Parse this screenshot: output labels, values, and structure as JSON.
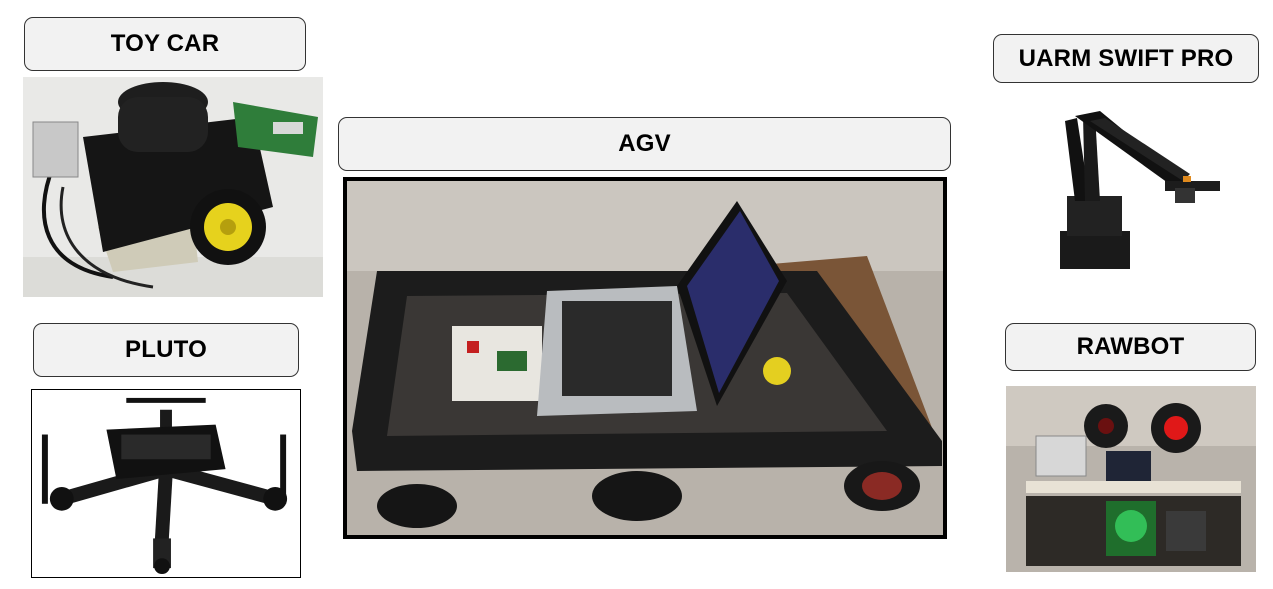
{
  "labels": {
    "toy_car": "TOY CAR",
    "agv": "AGV",
    "uarm": "UARM SWIFT PRO",
    "pluto": "PLUTO",
    "rawbot": "RAWBOT"
  },
  "colors": {
    "label_fill": "#f2f2f2",
    "label_border": "#333333",
    "background": "#ffffff"
  }
}
